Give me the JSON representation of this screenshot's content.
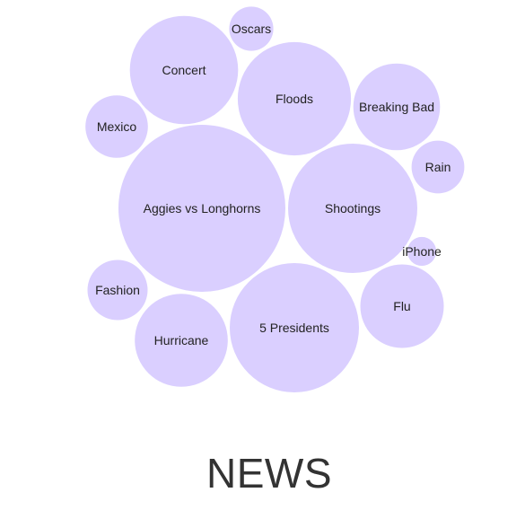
{
  "chart_data": {
    "type": "bubble",
    "title": "NEWS",
    "bubble_color": "#dacfff",
    "items": [
      {
        "label": "Aggies vs Longhorns",
        "value": 100
      },
      {
        "label": "5 Presidents",
        "value": 60
      },
      {
        "label": "Shootings",
        "value": 60
      },
      {
        "label": "Floods",
        "value": 46
      },
      {
        "label": "Concert",
        "value": 42
      },
      {
        "label": "Hurricane",
        "value": 31
      },
      {
        "label": "Breaking Bad",
        "value": 27
      },
      {
        "label": "Flu",
        "value": 25
      },
      {
        "label": "Fashion",
        "value": 13
      },
      {
        "label": "Mexico",
        "value": 14
      },
      {
        "label": "Rain",
        "value": 10
      },
      {
        "label": "Oscars",
        "value": 7
      },
      {
        "label": "iPhone",
        "value": 3
      }
    ]
  }
}
